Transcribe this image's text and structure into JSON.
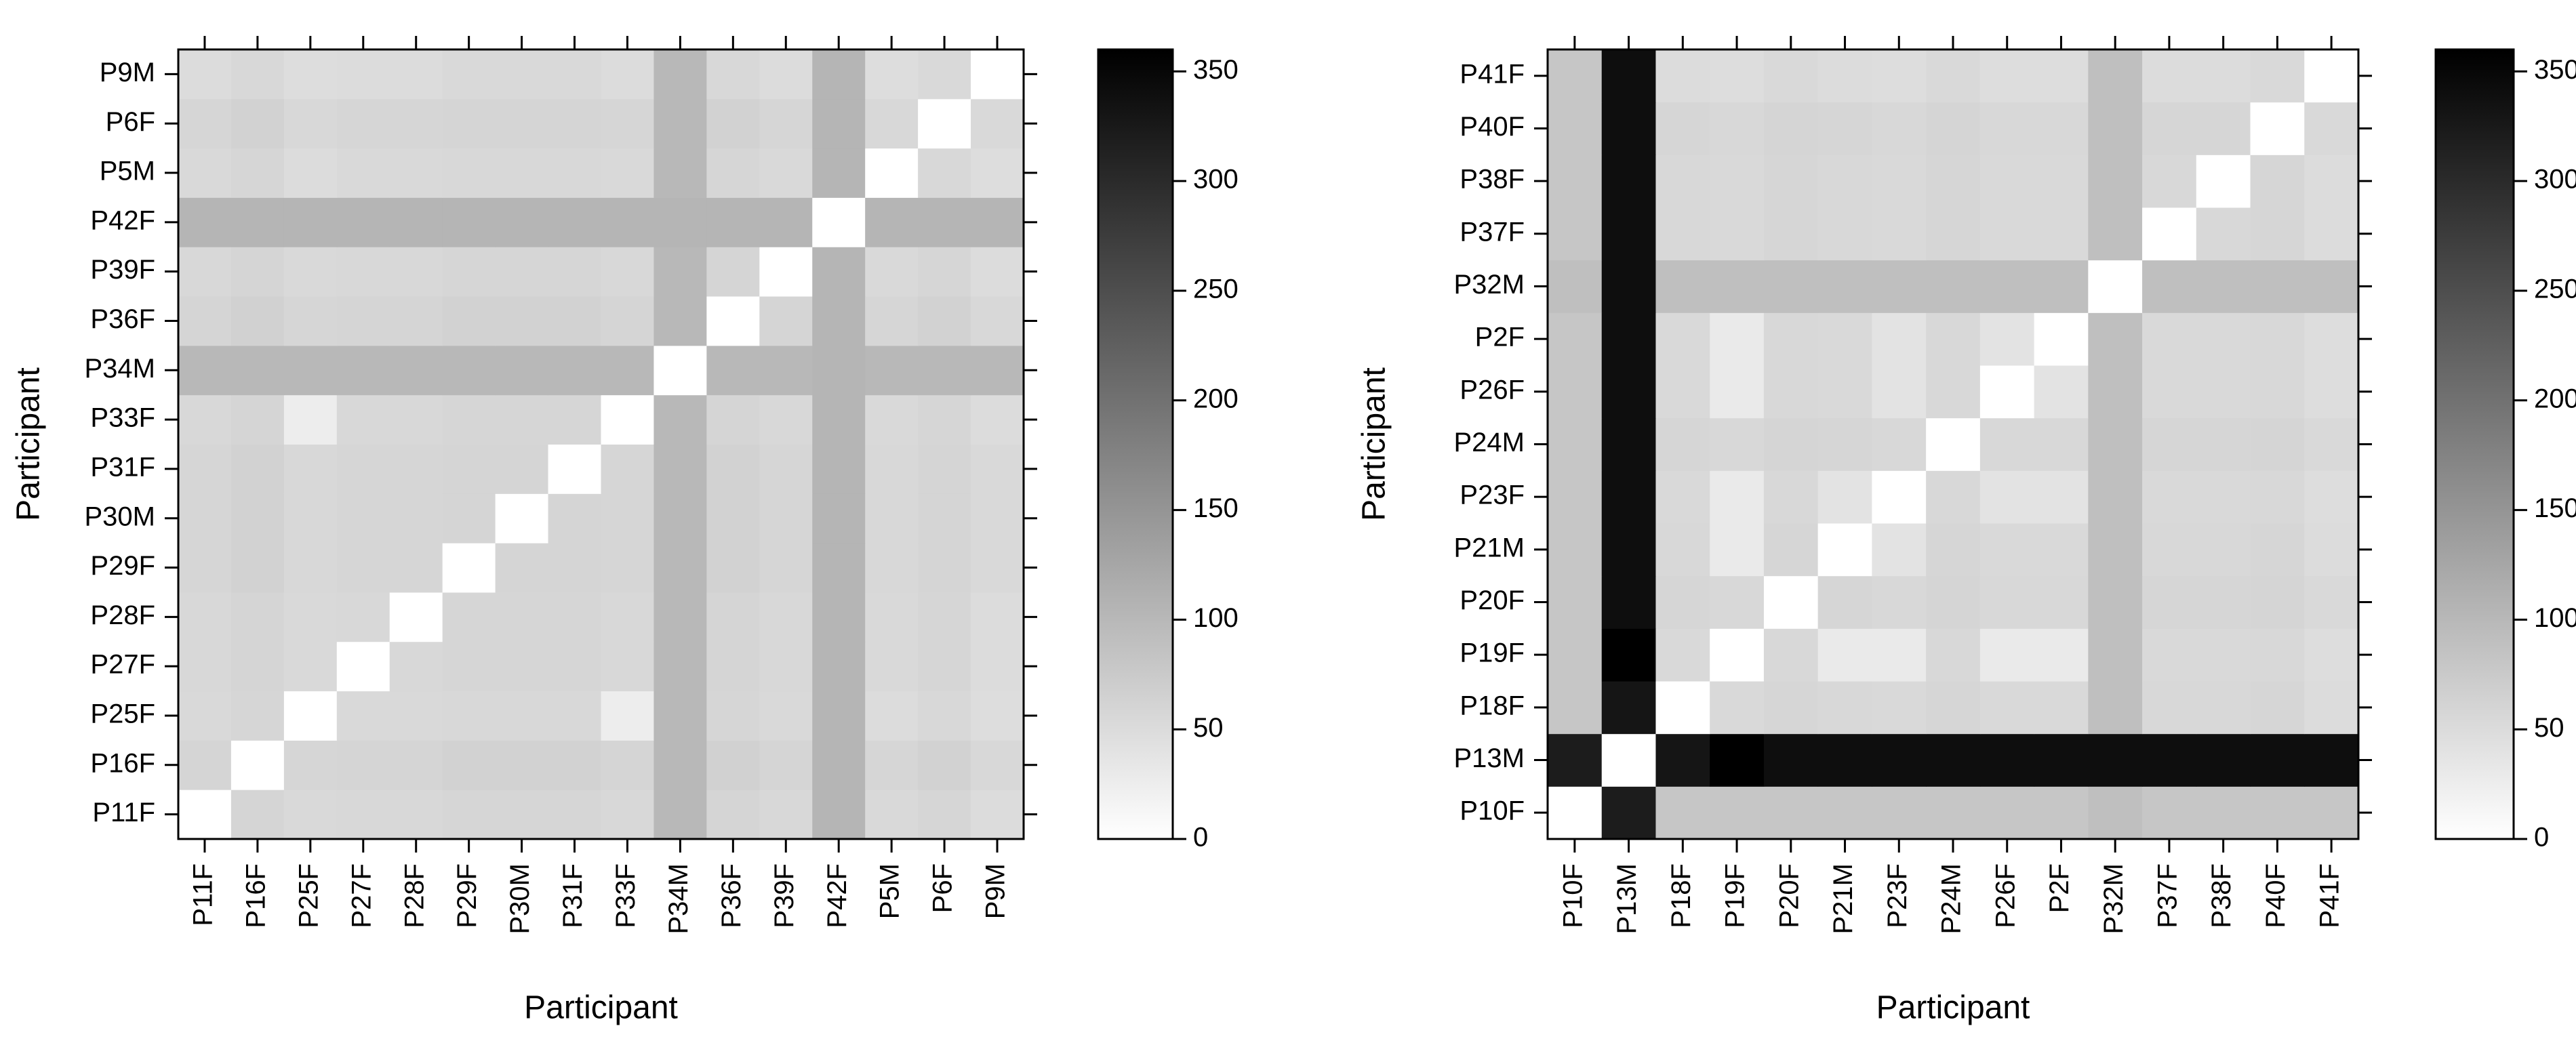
{
  "chart_data": [
    {
      "type": "heatmap",
      "xlabel": "Participant",
      "ylabel": "Participant",
      "x": [
        "P11F",
        "P16F",
        "P25F",
        "P27F",
        "P28F",
        "P29F",
        "P30M",
        "P31F",
        "P33F",
        "P34M",
        "P36F",
        "P39F",
        "P42F",
        "P5M",
        "P6F",
        "P9M"
      ],
      "y": [
        "P11F",
        "P16F",
        "P25F",
        "P27F",
        "P28F",
        "P29F",
        "P30M",
        "P31F",
        "P33F",
        "P34M",
        "P36F",
        "P39F",
        "P42F",
        "P5M",
        "P6F",
        "P9M"
      ],
      "values": [
        [
          0,
          60,
          53,
          55,
          55,
          58,
          58,
          58,
          55,
          100,
          60,
          55,
          105,
          53,
          58,
          50
        ],
        [
          60,
          0,
          58,
          60,
          60,
          63,
          63,
          63,
          60,
          100,
          65,
          60,
          105,
          58,
          63,
          55
        ],
        [
          53,
          58,
          0,
          53,
          53,
          55,
          55,
          55,
          25,
          100,
          58,
          53,
          105,
          50,
          55,
          48
        ],
        [
          55,
          60,
          53,
          0,
          55,
          58,
          58,
          58,
          55,
          100,
          60,
          55,
          105,
          53,
          58,
          50
        ],
        [
          55,
          60,
          53,
          55,
          0,
          58,
          58,
          58,
          55,
          100,
          60,
          55,
          105,
          53,
          58,
          50
        ],
        [
          58,
          63,
          55,
          58,
          58,
          0,
          60,
          60,
          58,
          100,
          63,
          58,
          105,
          55,
          60,
          53
        ],
        [
          58,
          63,
          55,
          58,
          58,
          60,
          0,
          60,
          58,
          100,
          63,
          58,
          105,
          55,
          60,
          53
        ],
        [
          58,
          63,
          55,
          58,
          58,
          60,
          60,
          0,
          58,
          100,
          63,
          58,
          105,
          55,
          60,
          53
        ],
        [
          55,
          60,
          25,
          55,
          55,
          58,
          58,
          58,
          0,
          100,
          60,
          55,
          105,
          53,
          58,
          50
        ],
        [
          100,
          100,
          100,
          100,
          100,
          100,
          100,
          100,
          100,
          0,
          100,
          100,
          105,
          100,
          100,
          100
        ],
        [
          60,
          65,
          58,
          60,
          60,
          63,
          63,
          63,
          60,
          100,
          0,
          60,
          105,
          58,
          63,
          55
        ],
        [
          55,
          60,
          53,
          55,
          55,
          58,
          58,
          58,
          55,
          100,
          60,
          0,
          105,
          53,
          58,
          50
        ],
        [
          105,
          105,
          105,
          105,
          105,
          105,
          105,
          105,
          105,
          105,
          105,
          105,
          0,
          105,
          105,
          105
        ],
        [
          53,
          58,
          50,
          53,
          53,
          55,
          55,
          55,
          53,
          100,
          58,
          53,
          105,
          0,
          55,
          48
        ],
        [
          58,
          63,
          55,
          58,
          58,
          60,
          60,
          60,
          58,
          100,
          63,
          58,
          105,
          55,
          0,
          53
        ],
        [
          50,
          55,
          48,
          50,
          50,
          53,
          53,
          53,
          50,
          100,
          55,
          50,
          105,
          48,
          53,
          0
        ]
      ],
      "zlim": [
        0,
        360
      ],
      "zticks": [
        0,
        50,
        100,
        150,
        200,
        250,
        300,
        350
      ],
      "colors": [
        "#ffffff",
        "#000000"
      ]
    },
    {
      "type": "heatmap",
      "xlabel": "Participant",
      "ylabel": "Participant",
      "x": [
        "P10F",
        "P13M",
        "P18F",
        "P19F",
        "P20F",
        "P21M",
        "P23F",
        "P24M",
        "P26F",
        "P2F",
        "P32M",
        "P37F",
        "P38F",
        "P40F",
        "P41F"
      ],
      "y": [
        "P10F",
        "P13M",
        "P18F",
        "P19F",
        "P20F",
        "P21M",
        "P23F",
        "P24M",
        "P26F",
        "P2F",
        "P32M",
        "P37F",
        "P38F",
        "P40F",
        "P41F"
      ],
      "values": [
        [
          0,
          320,
          80,
          80,
          80,
          80,
          80,
          80,
          80,
          80,
          90,
          80,
          80,
          80,
          80
        ],
        [
          320,
          0,
          330,
          360,
          340,
          340,
          340,
          340,
          340,
          340,
          340,
          340,
          340,
          340,
          340
        ],
        [
          80,
          330,
          0,
          53,
          58,
          55,
          53,
          58,
          53,
          53,
          90,
          55,
          55,
          58,
          50
        ],
        [
          80,
          360,
          53,
          0,
          55,
          30,
          30,
          55,
          30,
          30,
          90,
          53,
          53,
          55,
          48
        ],
        [
          80,
          340,
          58,
          55,
          0,
          58,
          55,
          60,
          55,
          55,
          90,
          58,
          58,
          60,
          53
        ],
        [
          80,
          340,
          55,
          30,
          58,
          0,
          40,
          58,
          53,
          53,
          90,
          55,
          55,
          58,
          50
        ],
        [
          80,
          340,
          53,
          30,
          55,
          40,
          0,
          55,
          40,
          40,
          90,
          53,
          53,
          55,
          48
        ],
        [
          80,
          340,
          58,
          55,
          60,
          58,
          55,
          0,
          55,
          55,
          90,
          58,
          58,
          60,
          53
        ],
        [
          80,
          340,
          53,
          30,
          55,
          53,
          40,
          55,
          0,
          40,
          90,
          53,
          53,
          55,
          48
        ],
        [
          80,
          340,
          53,
          30,
          55,
          53,
          40,
          55,
          40,
          0,
          90,
          53,
          53,
          55,
          48
        ],
        [
          90,
          340,
          90,
          90,
          90,
          90,
          90,
          90,
          90,
          90,
          0,
          90,
          90,
          90,
          90
        ],
        [
          80,
          340,
          55,
          53,
          58,
          55,
          53,
          58,
          53,
          53,
          90,
          0,
          55,
          58,
          50
        ],
        [
          80,
          340,
          55,
          53,
          58,
          55,
          53,
          58,
          53,
          53,
          90,
          55,
          0,
          58,
          50
        ],
        [
          80,
          340,
          58,
          55,
          60,
          58,
          55,
          60,
          55,
          55,
          90,
          58,
          58,
          0,
          53
        ],
        [
          80,
          340,
          50,
          48,
          53,
          50,
          48,
          53,
          48,
          48,
          90,
          50,
          50,
          53,
          0
        ]
      ],
      "zlim": [
        0,
        360
      ],
      "zticks": [
        0,
        50,
        100,
        150,
        200,
        250,
        300,
        350
      ],
      "colors": [
        "#ffffff",
        "#000000"
      ]
    }
  ]
}
